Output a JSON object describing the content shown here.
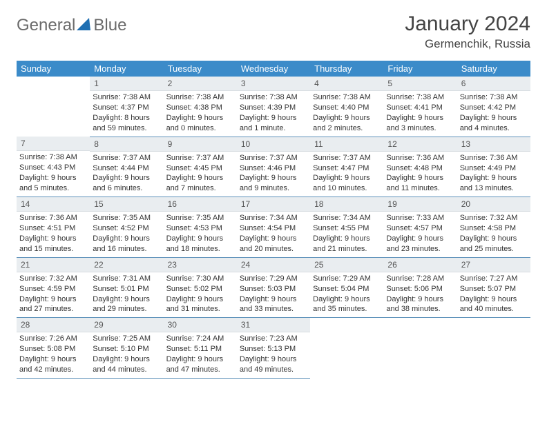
{
  "logo": {
    "text_left": "General",
    "text_right": "Blue",
    "shape_color": "#1f6fb2"
  },
  "title": "January 2024",
  "location": "Germenchik, Russia",
  "colors": {
    "header_bg": "#3b8bc9",
    "header_fg": "#ffffff",
    "daynum_bg": "#e9edf0",
    "cell_border": "#5a8fb8",
    "text": "#333333"
  },
  "weekdays": [
    "Sunday",
    "Monday",
    "Tuesday",
    "Wednesday",
    "Thursday",
    "Friday",
    "Saturday"
  ],
  "grid": [
    [
      {
        "empty": true
      },
      {
        "n": "1",
        "sr": "7:38 AM",
        "ss": "4:37 PM",
        "dl": "8 hours and 59 minutes."
      },
      {
        "n": "2",
        "sr": "7:38 AM",
        "ss": "4:38 PM",
        "dl": "9 hours and 0 minutes."
      },
      {
        "n": "3",
        "sr": "7:38 AM",
        "ss": "4:39 PM",
        "dl": "9 hours and 1 minute."
      },
      {
        "n": "4",
        "sr": "7:38 AM",
        "ss": "4:40 PM",
        "dl": "9 hours and 2 minutes."
      },
      {
        "n": "5",
        "sr": "7:38 AM",
        "ss": "4:41 PM",
        "dl": "9 hours and 3 minutes."
      },
      {
        "n": "6",
        "sr": "7:38 AM",
        "ss": "4:42 PM",
        "dl": "9 hours and 4 minutes."
      }
    ],
    [
      {
        "n": "7",
        "sr": "7:38 AM",
        "ss": "4:43 PM",
        "dl": "9 hours and 5 minutes."
      },
      {
        "n": "8",
        "sr": "7:37 AM",
        "ss": "4:44 PM",
        "dl": "9 hours and 6 minutes."
      },
      {
        "n": "9",
        "sr": "7:37 AM",
        "ss": "4:45 PM",
        "dl": "9 hours and 7 minutes."
      },
      {
        "n": "10",
        "sr": "7:37 AM",
        "ss": "4:46 PM",
        "dl": "9 hours and 9 minutes."
      },
      {
        "n": "11",
        "sr": "7:37 AM",
        "ss": "4:47 PM",
        "dl": "9 hours and 10 minutes."
      },
      {
        "n": "12",
        "sr": "7:36 AM",
        "ss": "4:48 PM",
        "dl": "9 hours and 11 minutes."
      },
      {
        "n": "13",
        "sr": "7:36 AM",
        "ss": "4:49 PM",
        "dl": "9 hours and 13 minutes."
      }
    ],
    [
      {
        "n": "14",
        "sr": "7:36 AM",
        "ss": "4:51 PM",
        "dl": "9 hours and 15 minutes."
      },
      {
        "n": "15",
        "sr": "7:35 AM",
        "ss": "4:52 PM",
        "dl": "9 hours and 16 minutes."
      },
      {
        "n": "16",
        "sr": "7:35 AM",
        "ss": "4:53 PM",
        "dl": "9 hours and 18 minutes."
      },
      {
        "n": "17",
        "sr": "7:34 AM",
        "ss": "4:54 PM",
        "dl": "9 hours and 20 minutes."
      },
      {
        "n": "18",
        "sr": "7:34 AM",
        "ss": "4:55 PM",
        "dl": "9 hours and 21 minutes."
      },
      {
        "n": "19",
        "sr": "7:33 AM",
        "ss": "4:57 PM",
        "dl": "9 hours and 23 minutes."
      },
      {
        "n": "20",
        "sr": "7:32 AM",
        "ss": "4:58 PM",
        "dl": "9 hours and 25 minutes."
      }
    ],
    [
      {
        "n": "21",
        "sr": "7:32 AM",
        "ss": "4:59 PM",
        "dl": "9 hours and 27 minutes."
      },
      {
        "n": "22",
        "sr": "7:31 AM",
        "ss": "5:01 PM",
        "dl": "9 hours and 29 minutes."
      },
      {
        "n": "23",
        "sr": "7:30 AM",
        "ss": "5:02 PM",
        "dl": "9 hours and 31 minutes."
      },
      {
        "n": "24",
        "sr": "7:29 AM",
        "ss": "5:03 PM",
        "dl": "9 hours and 33 minutes."
      },
      {
        "n": "25",
        "sr": "7:29 AM",
        "ss": "5:04 PM",
        "dl": "9 hours and 35 minutes."
      },
      {
        "n": "26",
        "sr": "7:28 AM",
        "ss": "5:06 PM",
        "dl": "9 hours and 38 minutes."
      },
      {
        "n": "27",
        "sr": "7:27 AM",
        "ss": "5:07 PM",
        "dl": "9 hours and 40 minutes."
      }
    ],
    [
      {
        "n": "28",
        "sr": "7:26 AM",
        "ss": "5:08 PM",
        "dl": "9 hours and 42 minutes."
      },
      {
        "n": "29",
        "sr": "7:25 AM",
        "ss": "5:10 PM",
        "dl": "9 hours and 44 minutes."
      },
      {
        "n": "30",
        "sr": "7:24 AM",
        "ss": "5:11 PM",
        "dl": "9 hours and 47 minutes."
      },
      {
        "n": "31",
        "sr": "7:23 AM",
        "ss": "5:13 PM",
        "dl": "9 hours and 49 minutes."
      },
      {
        "empty": true
      },
      {
        "empty": true
      },
      {
        "empty": true
      }
    ]
  ],
  "labels": {
    "sunrise": "Sunrise:",
    "sunset": "Sunset:",
    "daylight": "Daylight:"
  }
}
